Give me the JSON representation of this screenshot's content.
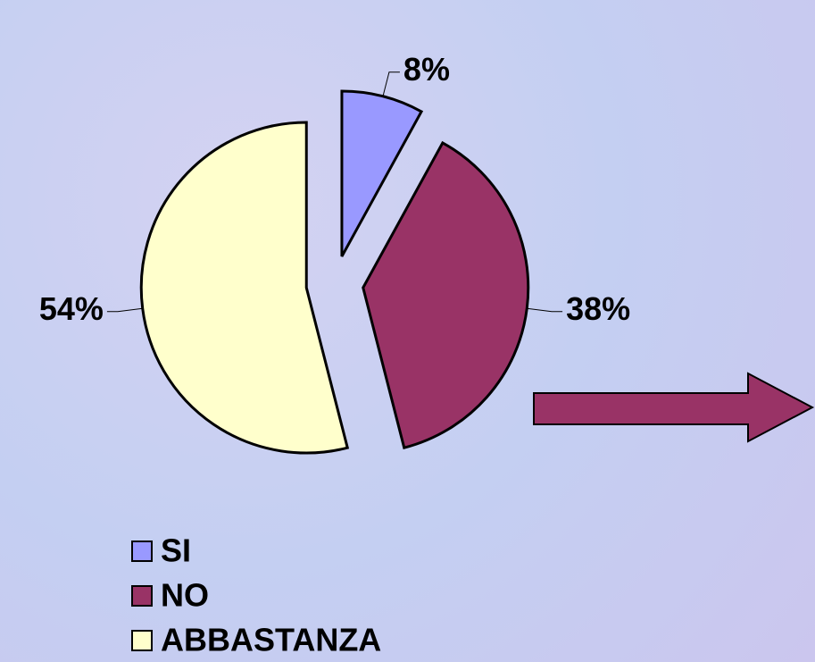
{
  "chart_data": {
    "type": "pie",
    "categories": [
      "SI",
      "NO",
      "ABBASTANZA"
    ],
    "values": [
      8,
      38,
      54
    ],
    "value_labels": [
      "8%",
      "38%",
      "54%"
    ],
    "colors": [
      "#9999ff",
      "#993366",
      "#ffffcc"
    ],
    "legend": "bottom"
  }
}
